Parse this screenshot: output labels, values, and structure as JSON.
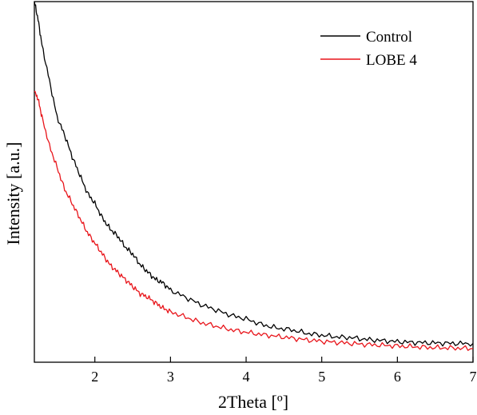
{
  "chart_data": {
    "type": "line",
    "title": "",
    "xlabel": "2Theta [º]",
    "ylabel": "Intensity [a.u.]",
    "xlim": [
      1.2,
      7
    ],
    "ylim": [
      0,
      100
    ],
    "x_ticks": [
      "2",
      "3",
      "4",
      "5",
      "6",
      "7"
    ],
    "y_ticks_shown": false,
    "grid": false,
    "legend_position": "top-right",
    "series": [
      {
        "name": "Control",
        "color": "#000000",
        "x": [
          1.2,
          1.25,
          1.3,
          1.4,
          1.5,
          1.6,
          1.7,
          1.8,
          1.9,
          2.0,
          2.1,
          2.2,
          2.3,
          2.4,
          2.5,
          2.6,
          2.7,
          2.8,
          2.9,
          3.0,
          3.2,
          3.4,
          3.6,
          3.8,
          4.0,
          4.2,
          4.4,
          4.6,
          4.8,
          5.0,
          5.2,
          5.4,
          5.6,
          5.8,
          6.0,
          6.2,
          6.4,
          6.6,
          6.8,
          7.0
        ],
        "y": [
          100,
          95,
          88,
          78,
          68,
          63,
          57,
          52,
          47,
          44,
          40,
          37,
          35,
          32,
          30,
          27,
          25,
          23,
          22,
          20,
          18,
          16,
          14.5,
          13,
          12,
          10.5,
          9.5,
          9,
          8,
          7.5,
          7,
          6.8,
          6.3,
          6,
          5.7,
          5.5,
          5.4,
          5.3,
          5.2,
          5.2
        ]
      },
      {
        "name": "LOBE 4",
        "color": "#e8141a",
        "x": [
          1.2,
          1.25,
          1.3,
          1.4,
          1.5,
          1.6,
          1.7,
          1.8,
          1.9,
          2.0,
          2.1,
          2.2,
          2.3,
          2.4,
          2.5,
          2.6,
          2.7,
          2.8,
          2.9,
          3.0,
          3.2,
          3.4,
          3.6,
          3.8,
          4.0,
          4.2,
          4.4,
          4.6,
          4.8,
          5.0,
          5.2,
          5.4,
          5.6,
          5.8,
          6.0,
          6.2,
          6.4,
          6.6,
          6.8,
          7.0
        ],
        "y": [
          75,
          73,
          68,
          60,
          54,
          48,
          44,
          40,
          36,
          33,
          30,
          27,
          25,
          23,
          21,
          19,
          18,
          16.5,
          15,
          14,
          12.5,
          11,
          10,
          9,
          8.3,
          7.7,
          7.2,
          6.7,
          6.2,
          5.8,
          5.5,
          5.2,
          4.9,
          4.7,
          4.5,
          4.3,
          4.1,
          4.0,
          3.9,
          3.8
        ]
      }
    ]
  }
}
